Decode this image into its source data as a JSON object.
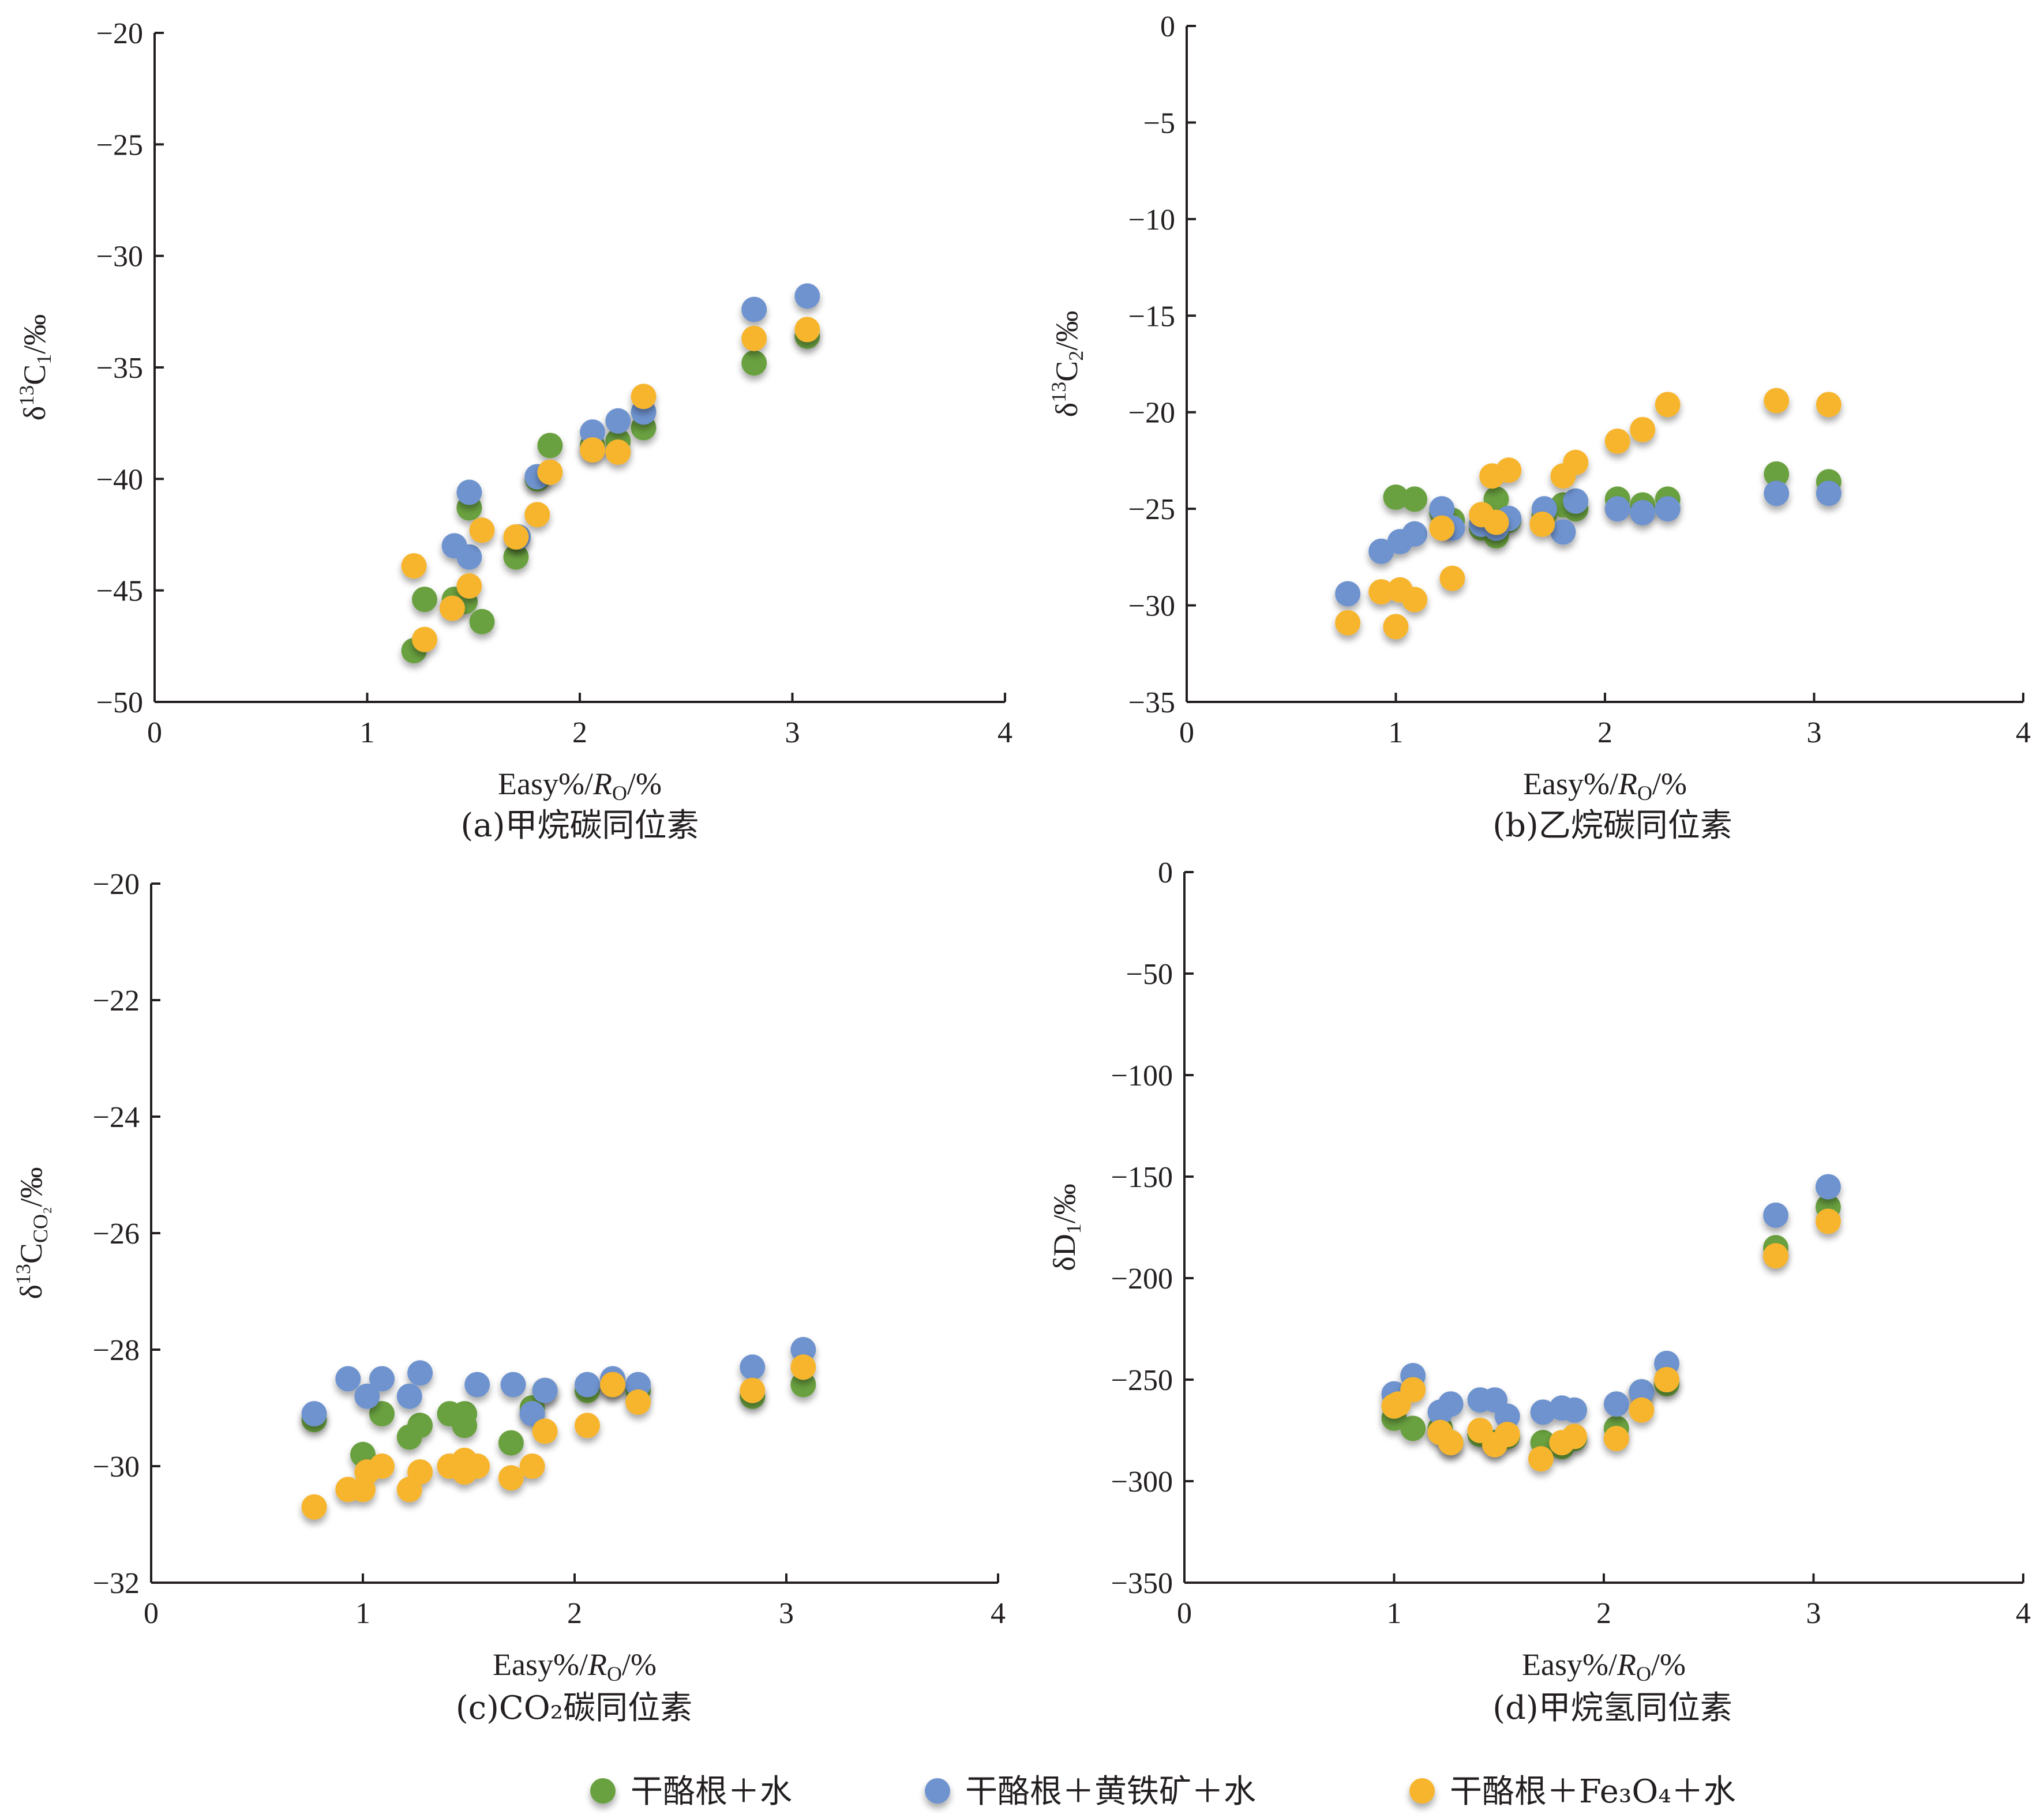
{
  "legend": [
    {
      "name": "干酪根＋水",
      "color": "#6aa140"
    },
    {
      "name": "干酪根＋黄铁矿＋水",
      "color": "#6e93cf"
    },
    {
      "name": "干酪根＋Fe₃O₄＋水",
      "color": "#f7b52e"
    }
  ],
  "chart_data": [
    {
      "type": "scatter",
      "caption": "(a)甲烷碳同位素",
      "xlabel": "Easy%/R<sub>O</sub>/%",
      "ylabel": "δ<sup>13</sup>C<sub>1</sub>/‰",
      "xlim": [
        0,
        4
      ],
      "ylim": [
        -50,
        -20
      ],
      "xticks": [
        0,
        1,
        2,
        3,
        4
      ],
      "yticks": [
        -20,
        -25,
        -30,
        -35,
        -40,
        -45,
        -50
      ],
      "series": [
        {
          "color": "#6aa140",
          "points": [
            [
              1.22,
              -47.7
            ],
            [
              1.27,
              -45.4
            ],
            [
              1.41,
              -45.4
            ],
            [
              1.46,
              -45.5
            ],
            [
              1.48,
              -41.3
            ],
            [
              1.54,
              -46.4
            ],
            [
              1.7,
              -43.5
            ],
            [
              1.8,
              -40.0
            ],
            [
              1.86,
              -38.5
            ],
            [
              2.06,
              -38.5
            ],
            [
              2.18,
              -38.3
            ],
            [
              2.3,
              -37.7
            ],
            [
              2.82,
              -34.8
            ],
            [
              3.07,
              -33.6
            ]
          ]
        },
        {
          "color": "#6e93cf",
          "points": [
            [
              1.41,
              -43.0
            ],
            [
              1.48,
              -40.6
            ],
            [
              1.48,
              -43.5
            ],
            [
              1.71,
              -42.6
            ],
            [
              1.8,
              -39.9
            ],
            [
              2.06,
              -37.9
            ],
            [
              2.18,
              -37.4
            ],
            [
              2.3,
              -37.0
            ],
            [
              2.82,
              -32.4
            ],
            [
              3.07,
              -31.8
            ]
          ]
        },
        {
          "color": "#f7b52e",
          "points": [
            [
              1.22,
              -43.9
            ],
            [
              1.27,
              -47.2
            ],
            [
              1.4,
              -45.8
            ],
            [
              1.48,
              -44.8
            ],
            [
              1.54,
              -42.3
            ],
            [
              1.7,
              -42.6
            ],
            [
              1.8,
              -41.6
            ],
            [
              1.86,
              -39.7
            ],
            [
              2.06,
              -38.7
            ],
            [
              2.18,
              -38.8
            ],
            [
              2.3,
              -36.3
            ],
            [
              2.82,
              -33.7
            ],
            [
              3.07,
              -33.3
            ]
          ]
        }
      ]
    },
    {
      "type": "scatter",
      "caption": "(b)乙烷碳同位素",
      "xlabel": "Easy%/R<sub>O</sub>/%",
      "ylabel": "δ<sup>13</sup>C<sub>2</sub>/‰",
      "xlim": [
        0,
        4
      ],
      "ylim": [
        -35,
        0
      ],
      "xticks": [
        0,
        1,
        2,
        3,
        4
      ],
      "yticks": [
        0,
        -5,
        -10,
        -15,
        -20,
        -25,
        -30,
        -35
      ],
      "series": [
        {
          "color": "#6aa140",
          "points": [
            [
              1.0,
              -24.4
            ],
            [
              1.09,
              -24.5
            ],
            [
              1.22,
              -25.2
            ],
            [
              1.27,
              -25.6
            ],
            [
              1.41,
              -26.0
            ],
            [
              1.48,
              -24.5
            ],
            [
              1.48,
              -26.4
            ],
            [
              1.54,
              -25.6
            ],
            [
              1.71,
              -25.3
            ],
            [
              1.8,
              -24.8
            ],
            [
              1.86,
              -25.0
            ],
            [
              2.06,
              -24.5
            ],
            [
              2.18,
              -24.8
            ],
            [
              2.3,
              -24.5
            ],
            [
              2.82,
              -23.2
            ],
            [
              3.07,
              -23.6
            ]
          ]
        },
        {
          "color": "#6e93cf",
          "points": [
            [
              0.77,
              -29.4
            ],
            [
              0.93,
              -27.2
            ],
            [
              1.02,
              -26.7
            ],
            [
              1.09,
              -26.3
            ],
            [
              1.22,
              -25.0
            ],
            [
              1.27,
              -26.0
            ],
            [
              1.41,
              -25.8
            ],
            [
              1.48,
              -26.0
            ],
            [
              1.54,
              -25.5
            ],
            [
              1.71,
              -25.0
            ],
            [
              1.8,
              -26.2
            ],
            [
              1.86,
              -24.6
            ],
            [
              2.06,
              -25.0
            ],
            [
              2.18,
              -25.2
            ],
            [
              2.3,
              -25.0
            ],
            [
              2.82,
              -24.2
            ],
            [
              3.07,
              -24.2
            ]
          ]
        },
        {
          "color": "#f7b52e",
          "points": [
            [
              0.77,
              -30.9
            ],
            [
              0.93,
              -29.3
            ],
            [
              1.0,
              -31.1
            ],
            [
              1.02,
              -29.2
            ],
            [
              1.09,
              -29.7
            ],
            [
              1.22,
              -26.0
            ],
            [
              1.27,
              -28.6
            ],
            [
              1.41,
              -25.3
            ],
            [
              1.46,
              -23.3
            ],
            [
              1.48,
              -25.7
            ],
            [
              1.54,
              -23.0
            ],
            [
              1.7,
              -25.8
            ],
            [
              1.8,
              -23.3
            ],
            [
              1.86,
              -22.6
            ],
            [
              2.06,
              -21.5
            ],
            [
              2.18,
              -20.9
            ],
            [
              2.3,
              -19.6
            ],
            [
              2.82,
              -19.4
            ],
            [
              3.07,
              -19.6
            ]
          ]
        }
      ]
    },
    {
      "type": "scatter",
      "caption": "(c)CO₂碳同位素",
      "xlabel": "Easy%/R<sub>O</sub>/%",
      "ylabel": "δ<sup>13</sup>C<sub>CO<tspan font-size='0.7em' baseline-shift='sub'>2</tspan></sub>/‰",
      "xlim": [
        0,
        4
      ],
      "ylim": [
        -32,
        -20
      ],
      "xticks": [
        0,
        1,
        2,
        3,
        4
      ],
      "yticks": [
        -20,
        -22,
        -24,
        -26,
        -28,
        -30,
        -32
      ],
      "series": [
        {
          "color": "#6aa140",
          "points": [
            [
              0.77,
              -29.2
            ],
            [
              1.0,
              -29.8
            ],
            [
              1.09,
              -29.1
            ],
            [
              1.22,
              -29.5
            ],
            [
              1.27,
              -29.3
            ],
            [
              1.41,
              -29.1
            ],
            [
              1.48,
              -29.1
            ],
            [
              1.48,
              -29.3
            ],
            [
              1.7,
              -29.6
            ],
            [
              1.8,
              -29.0
            ],
            [
              1.86,
              -28.7
            ],
            [
              2.06,
              -28.7
            ],
            [
              2.18,
              -28.6
            ],
            [
              2.3,
              -28.7
            ],
            [
              2.84,
              -28.8
            ],
            [
              3.08,
              -28.6
            ]
          ]
        },
        {
          "color": "#6e93cf",
          "points": [
            [
              0.77,
              -29.1
            ],
            [
              0.93,
              -28.5
            ],
            [
              1.02,
              -28.8
            ],
            [
              1.09,
              -28.5
            ],
            [
              1.22,
              -28.8
            ],
            [
              1.27,
              -28.4
            ],
            [
              1.54,
              -28.6
            ],
            [
              1.71,
              -28.6
            ],
            [
              1.8,
              -29.1
            ],
            [
              1.86,
              -28.7
            ],
            [
              2.06,
              -28.6
            ],
            [
              2.18,
              -28.5
            ],
            [
              2.3,
              -28.6
            ],
            [
              2.84,
              -28.3
            ],
            [
              3.08,
              -28.0
            ]
          ]
        },
        {
          "color": "#f7b52e",
          "points": [
            [
              0.77,
              -30.7
            ],
            [
              0.93,
              -30.4
            ],
            [
              1.0,
              -30.4
            ],
            [
              1.02,
              -30.1
            ],
            [
              1.09,
              -30.0
            ],
            [
              1.22,
              -30.4
            ],
            [
              1.27,
              -30.1
            ],
            [
              1.41,
              -30.0
            ],
            [
              1.48,
              -29.9
            ],
            [
              1.48,
              -30.1
            ],
            [
              1.54,
              -30.0
            ],
            [
              1.7,
              -30.2
            ],
            [
              1.8,
              -30.0
            ],
            [
              1.86,
              -29.4
            ],
            [
              2.06,
              -29.3
            ],
            [
              2.18,
              -28.6
            ],
            [
              2.3,
              -28.9
            ],
            [
              2.84,
              -28.7
            ],
            [
              3.08,
              -28.3
            ]
          ]
        }
      ]
    },
    {
      "type": "scatter",
      "caption": "(d)甲烷氢同位素",
      "xlabel": "Easy%/R<sub>O</sub>/%",
      "ylabel": "δD<sub>1</sub>/‰",
      "xlim": [
        0,
        4
      ],
      "ylim": [
        -350,
        0
      ],
      "xticks": [
        0,
        1,
        2,
        3,
        4
      ],
      "yticks": [
        0,
        -50,
        -100,
        -150,
        -200,
        -250,
        -300,
        -350
      ],
      "series": [
        {
          "color": "#6aa140",
          "points": [
            [
              1.0,
              -269
            ],
            [
              1.09,
              -274
            ],
            [
              1.22,
              -274
            ],
            [
              1.27,
              -281
            ],
            [
              1.41,
              -277
            ],
            [
              1.48,
              -281
            ],
            [
              1.54,
              -278
            ],
            [
              1.71,
              -281
            ],
            [
              1.8,
              -283
            ],
            [
              1.86,
              -279
            ],
            [
              2.06,
              -274
            ],
            [
              2.18,
              -256
            ],
            [
              2.3,
              -252
            ],
            [
              2.82,
              -185
            ],
            [
              3.07,
              -165
            ]
          ]
        },
        {
          "color": "#6e93cf",
          "points": [
            [
              1.0,
              -257
            ],
            [
              1.09,
              -248
            ],
            [
              1.22,
              -266
            ],
            [
              1.27,
              -262
            ],
            [
              1.41,
              -260
            ],
            [
              1.48,
              -260
            ],
            [
              1.54,
              -268
            ],
            [
              1.71,
              -266
            ],
            [
              1.8,
              -264
            ],
            [
              1.86,
              -265
            ],
            [
              2.06,
              -262
            ],
            [
              2.18,
              -256
            ],
            [
              2.3,
              -242
            ],
            [
              2.82,
              -169
            ],
            [
              3.07,
              -155
            ]
          ]
        },
        {
          "color": "#f7b52e",
          "points": [
            [
              1.0,
              -263
            ],
            [
              1.02,
              -262
            ],
            [
              1.09,
              -255
            ],
            [
              1.22,
              -276
            ],
            [
              1.27,
              -281
            ],
            [
              1.41,
              -275
            ],
            [
              1.48,
              -282
            ],
            [
              1.54,
              -277
            ],
            [
              1.7,
              -289
            ],
            [
              1.8,
              -281
            ],
            [
              1.86,
              -278
            ],
            [
              2.06,
              -279
            ],
            [
              2.18,
              -265
            ],
            [
              2.3,
              -250
            ],
            [
              2.82,
              -189
            ],
            [
              3.07,
              -172
            ]
          ]
        }
      ]
    }
  ]
}
